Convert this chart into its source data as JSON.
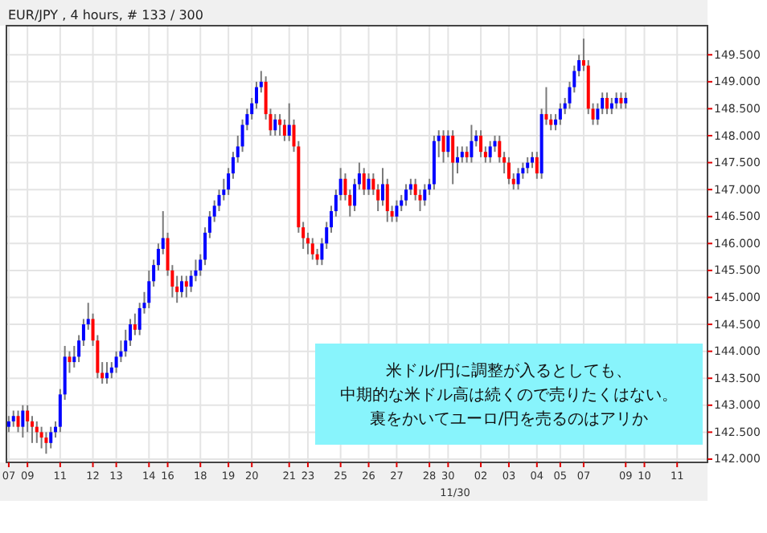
{
  "chart_data": {
    "type": "candlestick",
    "title": "EUR/JPY , 4 hours, # 133 / 300",
    "categories": [
      "07",
      null,
      null,
      null,
      "09",
      null,
      null,
      null,
      null,
      null,
      null,
      "11",
      null,
      null,
      null,
      null,
      null,
      null,
      "12",
      null,
      null,
      null,
      null,
      "13",
      null,
      null,
      null,
      null,
      null,
      null,
      "14",
      null,
      null,
      null,
      "16",
      null,
      null,
      null,
      null,
      null,
      null,
      "18",
      null,
      null,
      null,
      null,
      null,
      "19",
      null,
      null,
      null,
      null,
      "20",
      null,
      null,
      null,
      null,
      null,
      null,
      null,
      "21",
      null,
      null,
      null,
      "23",
      null,
      null,
      null,
      null,
      null,
      null,
      "25",
      null,
      null,
      null,
      null,
      null,
      "26",
      null,
      null,
      null,
      null,
      null,
      "27",
      null,
      null,
      null,
      null,
      null,
      null,
      "28",
      null,
      null,
      null,
      "30",
      null,
      null,
      null,
      null,
      null,
      null,
      "02",
      null,
      null,
      null,
      null,
      null,
      "03",
      null,
      null,
      null,
      null,
      null,
      "04",
      null,
      null,
      null,
      null,
      "05",
      null,
      null,
      null,
      null,
      "07",
      null,
      null,
      null,
      null,
      null,
      null,
      null,
      null,
      "09",
      null,
      null,
      null,
      "10",
      null,
      null,
      null,
      null,
      null,
      null,
      "11",
      null,
      null,
      null,
      null,
      null,
      null
    ],
    "ohlc": [
      [
        142.6,
        142.8,
        142.5,
        142.7
      ],
      [
        142.7,
        142.9,
        142.6,
        142.8
      ],
      [
        142.8,
        142.9,
        142.5,
        142.6
      ],
      [
        142.6,
        143.0,
        142.4,
        142.9
      ],
      [
        142.9,
        143.0,
        142.5,
        142.7
      ],
      [
        142.7,
        142.8,
        142.3,
        142.6
      ],
      [
        142.6,
        142.7,
        142.3,
        142.5
      ],
      [
        142.5,
        142.6,
        142.2,
        142.4
      ],
      [
        142.4,
        142.5,
        142.1,
        142.3
      ],
      [
        142.3,
        142.6,
        142.2,
        142.5
      ],
      [
        142.5,
        142.7,
        142.4,
        142.6
      ],
      [
        142.6,
        143.3,
        142.5,
        143.2
      ],
      [
        143.2,
        144.1,
        143.1,
        143.9
      ],
      [
        143.9,
        144.0,
        143.6,
        143.8
      ],
      [
        143.8,
        144.1,
        143.7,
        143.9
      ],
      [
        143.9,
        144.3,
        143.8,
        144.2
      ],
      [
        144.2,
        144.6,
        144.1,
        144.5
      ],
      [
        144.5,
        144.9,
        144.4,
        144.6
      ],
      [
        144.6,
        144.7,
        144.1,
        144.2
      ],
      [
        144.2,
        144.3,
        143.5,
        143.6
      ],
      [
        143.6,
        143.8,
        143.4,
        143.5
      ],
      [
        143.5,
        143.8,
        143.4,
        143.6
      ],
      [
        143.6,
        143.8,
        143.5,
        143.7
      ],
      [
        143.7,
        144.0,
        143.6,
        143.9
      ],
      [
        143.9,
        144.2,
        143.8,
        144.0
      ],
      [
        144.0,
        144.4,
        143.9,
        144.2
      ],
      [
        144.2,
        144.6,
        144.1,
        144.5
      ],
      [
        144.5,
        144.7,
        144.3,
        144.4
      ],
      [
        144.4,
        144.9,
        144.3,
        144.8
      ],
      [
        144.8,
        145.1,
        144.7,
        144.9
      ],
      [
        144.9,
        145.5,
        144.8,
        145.3
      ],
      [
        145.3,
        145.7,
        145.2,
        145.6
      ],
      [
        145.6,
        146.0,
        145.5,
        145.9
      ],
      [
        145.9,
        146.6,
        145.8,
        146.1
      ],
      [
        146.1,
        146.2,
        145.4,
        145.5
      ],
      [
        145.5,
        145.6,
        145.0,
        145.2
      ],
      [
        145.2,
        145.4,
        144.9,
        145.1
      ],
      [
        145.1,
        145.4,
        145.0,
        145.3
      ],
      [
        145.3,
        145.4,
        145.0,
        145.2
      ],
      [
        145.2,
        145.5,
        145.1,
        145.4
      ],
      [
        145.4,
        145.7,
        145.3,
        145.5
      ],
      [
        145.5,
        145.8,
        145.4,
        145.7
      ],
      [
        145.7,
        146.3,
        145.6,
        146.2
      ],
      [
        146.2,
        146.6,
        146.1,
        146.5
      ],
      [
        146.5,
        146.8,
        146.4,
        146.7
      ],
      [
        146.7,
        147.0,
        146.6,
        146.9
      ],
      [
        146.9,
        147.2,
        146.8,
        147.0
      ],
      [
        147.0,
        147.4,
        146.9,
        147.3
      ],
      [
        147.3,
        147.7,
        147.2,
        147.6
      ],
      [
        147.6,
        148.0,
        147.5,
        147.8
      ],
      [
        147.8,
        148.3,
        147.7,
        148.2
      ],
      [
        148.2,
        148.5,
        148.1,
        148.4
      ],
      [
        148.4,
        148.7,
        148.3,
        148.6
      ],
      [
        148.6,
        149.0,
        148.5,
        148.9
      ],
      [
        148.9,
        149.2,
        148.8,
        149.0
      ],
      [
        149.0,
        149.1,
        148.3,
        148.4
      ],
      [
        148.4,
        148.5,
        148.0,
        148.1
      ],
      [
        148.1,
        148.4,
        148.0,
        148.3
      ],
      [
        148.3,
        148.4,
        148.0,
        148.2
      ],
      [
        148.2,
        148.3,
        147.9,
        148.0
      ],
      [
        148.0,
        148.6,
        147.9,
        148.2
      ],
      [
        148.2,
        148.3,
        147.7,
        147.8
      ],
      [
        147.8,
        147.9,
        146.2,
        146.3
      ],
      [
        146.3,
        146.4,
        145.9,
        146.1
      ],
      [
        146.1,
        146.2,
        145.8,
        146.0
      ],
      [
        146.0,
        146.1,
        145.7,
        145.8
      ],
      [
        145.8,
        145.9,
        145.6,
        145.7
      ],
      [
        145.7,
        146.1,
        145.6,
        146.0
      ],
      [
        146.0,
        146.4,
        145.9,
        146.3
      ],
      [
        146.3,
        146.7,
        146.2,
        146.6
      ],
      [
        146.6,
        147.0,
        146.5,
        146.9
      ],
      [
        146.9,
        147.4,
        146.8,
        147.2
      ],
      [
        147.2,
        147.3,
        146.8,
        146.9
      ],
      [
        146.9,
        147.0,
        146.5,
        146.7
      ],
      [
        146.7,
        147.2,
        146.6,
        147.1
      ],
      [
        147.1,
        147.5,
        147.0,
        147.3
      ],
      [
        147.3,
        147.4,
        146.9,
        147.0
      ],
      [
        147.0,
        147.3,
        146.9,
        147.2
      ],
      [
        147.2,
        147.3,
        146.9,
        147.0
      ],
      [
        147.0,
        147.1,
        146.6,
        146.8
      ],
      [
        146.8,
        147.4,
        146.7,
        147.1
      ],
      [
        147.1,
        147.2,
        146.4,
        146.6
      ],
      [
        146.6,
        146.7,
        146.4,
        146.5
      ],
      [
        146.5,
        146.8,
        146.4,
        146.7
      ],
      [
        146.7,
        146.9,
        146.6,
        146.8
      ],
      [
        146.8,
        147.1,
        146.7,
        147.0
      ],
      [
        147.0,
        147.2,
        146.9,
        147.1
      ],
      [
        147.1,
        147.2,
        146.8,
        146.9
      ],
      [
        146.9,
        147.0,
        146.6,
        146.8
      ],
      [
        146.8,
        147.1,
        146.7,
        147.0
      ],
      [
        147.0,
        147.2,
        146.9,
        147.1
      ],
      [
        147.1,
        148.0,
        147.0,
        147.9
      ],
      [
        147.9,
        148.1,
        147.6,
        148.0
      ],
      [
        148.0,
        148.1,
        147.5,
        147.7
      ],
      [
        147.7,
        148.1,
        147.6,
        148.0
      ],
      [
        148.0,
        148.1,
        147.1,
        147.5
      ],
      [
        147.5,
        147.8,
        147.3,
        147.6
      ],
      [
        147.6,
        147.8,
        147.5,
        147.7
      ],
      [
        147.7,
        147.8,
        147.5,
        147.6
      ],
      [
        147.6,
        148.2,
        147.5,
        147.9
      ],
      [
        147.9,
        148.1,
        147.8,
        148.0
      ],
      [
        148.0,
        148.1,
        147.6,
        147.7
      ],
      [
        147.7,
        147.8,
        147.5,
        147.6
      ],
      [
        147.6,
        147.9,
        147.5,
        147.8
      ],
      [
        147.8,
        148.0,
        147.7,
        147.9
      ],
      [
        147.9,
        148.0,
        147.5,
        147.6
      ],
      [
        147.6,
        147.7,
        147.3,
        147.5
      ],
      [
        147.5,
        147.6,
        147.1,
        147.2
      ],
      [
        147.2,
        147.3,
        147.0,
        147.1
      ],
      [
        147.1,
        147.4,
        147.0,
        147.3
      ],
      [
        147.3,
        147.5,
        147.2,
        147.4
      ],
      [
        147.4,
        147.6,
        147.3,
        147.5
      ],
      [
        147.5,
        147.7,
        147.4,
        147.6
      ],
      [
        147.6,
        147.7,
        147.2,
        147.3
      ],
      [
        147.3,
        148.5,
        147.2,
        148.4
      ],
      [
        148.4,
        148.9,
        148.2,
        148.3
      ],
      [
        148.3,
        148.4,
        148.1,
        148.2
      ],
      [
        148.2,
        148.4,
        148.1,
        148.3
      ],
      [
        148.3,
        148.6,
        148.2,
        148.5
      ],
      [
        148.5,
        148.7,
        148.4,
        148.6
      ],
      [
        148.6,
        149.0,
        148.5,
        148.9
      ],
      [
        148.9,
        149.3,
        148.8,
        149.2
      ],
      [
        149.2,
        149.5,
        149.1,
        149.4
      ],
      [
        149.4,
        149.8,
        149.2,
        149.3
      ],
      [
        149.3,
        149.4,
        148.4,
        148.5
      ],
      [
        148.5,
        148.6,
        148.2,
        148.3
      ],
      [
        148.3,
        148.6,
        148.2,
        148.5
      ],
      [
        148.5,
        148.8,
        148.4,
        148.7
      ],
      [
        148.7,
        148.8,
        148.4,
        148.5
      ],
      [
        148.5,
        148.7,
        148.4,
        148.6
      ],
      [
        148.6,
        148.8,
        148.5,
        148.7
      ],
      [
        148.7,
        148.8,
        148.5,
        148.6
      ],
      [
        148.6,
        148.8,
        148.5,
        148.7
      ],
      null,
      null,
      null,
      null,
      null,
      null,
      null,
      null,
      null,
      null,
      null,
      null,
      null,
      null,
      null,
      null,
      null
    ],
    "ylim": [
      141.94,
      150.04
    ],
    "yticks": [
      {
        "value": 142,
        "label": "142.000"
      },
      {
        "value": 142.5,
        "label": "142.500"
      },
      {
        "value": 143,
        "label": "143.000"
      },
      {
        "value": 143.5,
        "label": "143.500"
      },
      {
        "value": 144,
        "label": "144.000"
      },
      {
        "value": 144.5,
        "label": "144.500"
      },
      {
        "value": 145,
        "label": "145.000"
      },
      {
        "value": 145.5,
        "label": "145.500"
      },
      {
        "value": 146,
        "label": "146.000"
      },
      {
        "value": 146.5,
        "label": "146.500"
      },
      {
        "value": 147,
        "label": "147.000"
      },
      {
        "value": 147.5,
        "label": "147.500"
      },
      {
        "value": 148,
        "label": "148.000"
      },
      {
        "value": 148.5,
        "label": "148.500"
      },
      {
        "value": 149,
        "label": "149.000"
      },
      {
        "value": 149.5,
        "label": "149.500"
      }
    ],
    "grid": true,
    "annotations": [
      "11/30",
      "米ドル/円に調整が入るとしても、中期的な米ドル高は続くので売りたくはない。裏をかいてユーロ/円を売るのはアリか"
    ]
  }
}
